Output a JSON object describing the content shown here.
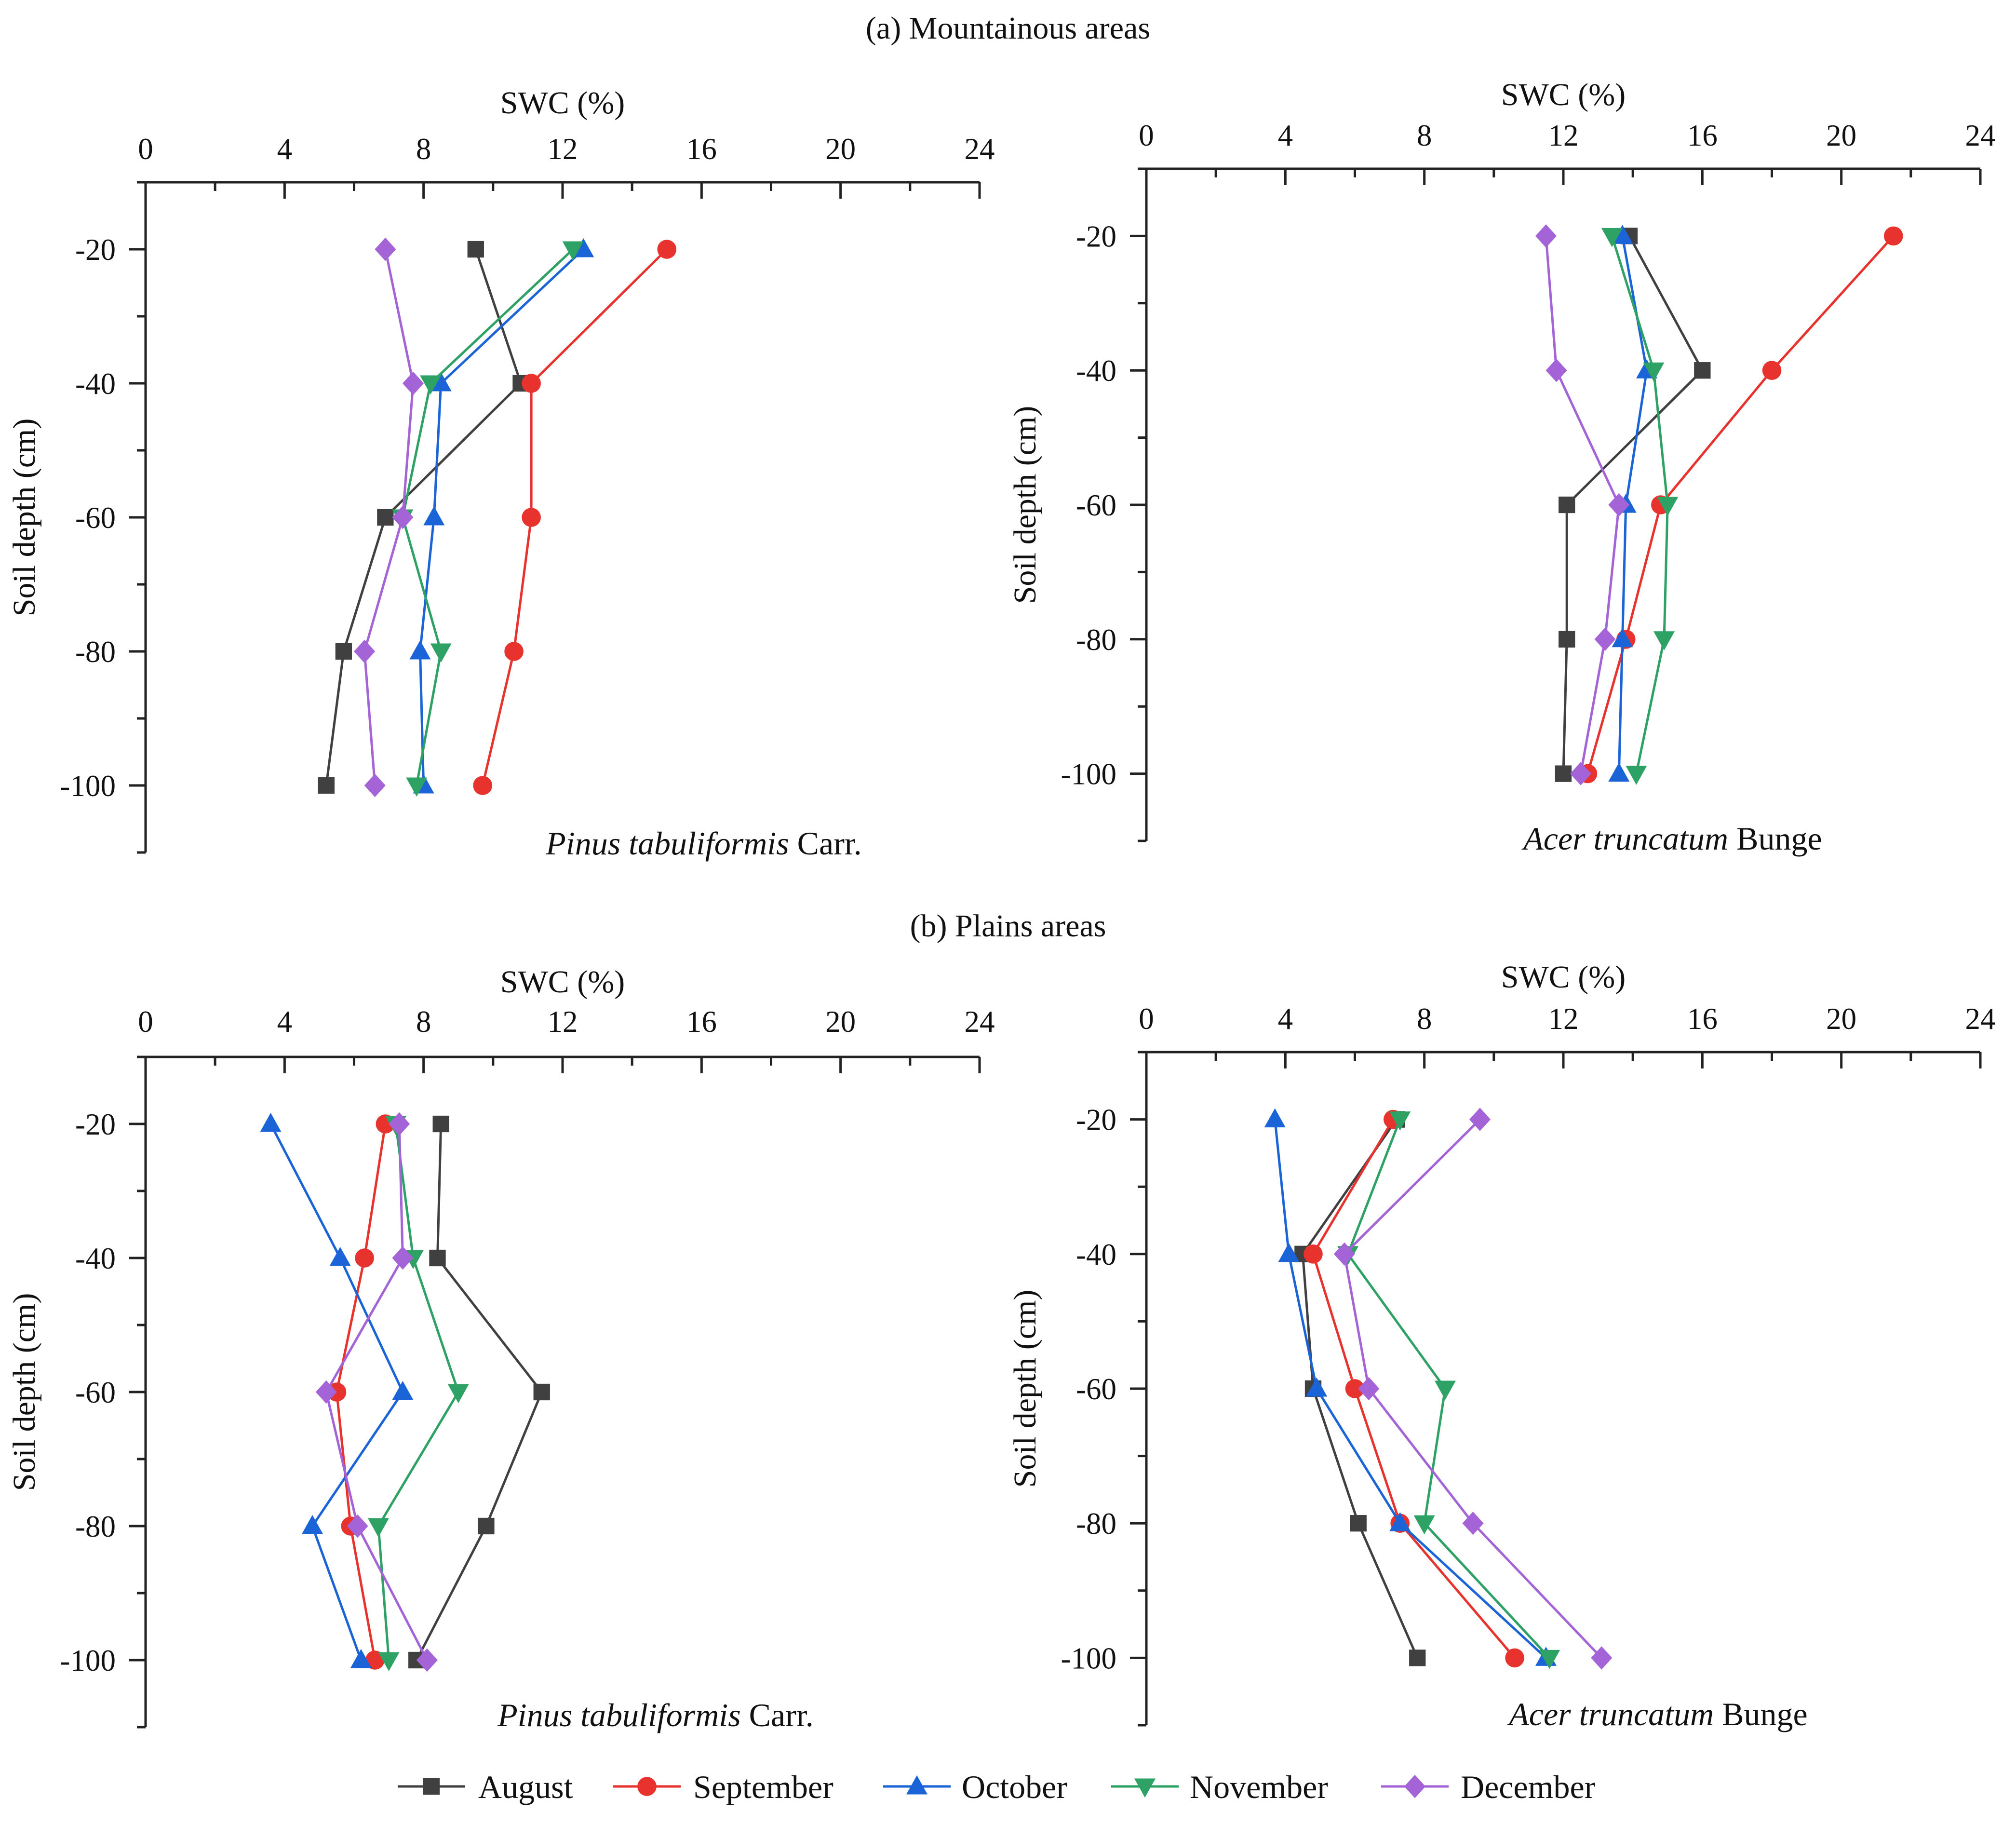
{
  "sections": [
    {
      "title": "(a) Mountainous areas"
    },
    {
      "title": "(b) Plains areas"
    }
  ],
  "colors": {
    "August": "#404040",
    "September": "#e8322e",
    "October": "#1a64d8",
    "November": "#2ea165",
    "December": "#a463d6"
  },
  "legend": [
    {
      "label": "August",
      "marker": "square"
    },
    {
      "label": "September",
      "marker": "circle"
    },
    {
      "label": "October",
      "marker": "triangle-up"
    },
    {
      "label": "November",
      "marker": "triangle-down"
    },
    {
      "label": "December",
      "marker": "diamond"
    }
  ],
  "panels": [
    {
      "species_italic": "Pinus tabuliformis",
      "species_rest": " Carr."
    },
    {
      "species_italic": "Acer truncatum",
      "species_rest": " Bunge"
    },
    {
      "species_italic": "Pinus tabuliformis",
      "species_rest": " Carr."
    },
    {
      "species_italic": "Acer truncatum",
      "species_rest": " Bunge"
    }
  ],
  "chart_data": [
    {
      "type": "line",
      "section": "(a) Mountainous areas",
      "title": "Pinus tabuliformis Carr.",
      "xlabel": "SWC (%)",
      "ylabel": "Soil depth (cm)",
      "xlim": [
        0,
        24
      ],
      "ylim": [
        -110,
        -10
      ],
      "xticks": [
        0,
        4,
        8,
        12,
        16,
        20,
        24
      ],
      "yticks": [
        -20,
        -40,
        -60,
        -80,
        -100
      ],
      "depths": [
        -20,
        -40,
        -60,
        -80,
        -100
      ],
      "series": [
        {
          "name": "August",
          "values": [
            9.5,
            10.8,
            6.9,
            5.7,
            5.2
          ]
        },
        {
          "name": "September",
          "values": [
            15.0,
            11.1,
            11.1,
            10.6,
            9.7
          ]
        },
        {
          "name": "October",
          "values": [
            12.6,
            8.5,
            8.3,
            7.9,
            8.0
          ]
        },
        {
          "name": "November",
          "values": [
            12.3,
            8.2,
            7.4,
            8.5,
            7.8
          ]
        },
        {
          "name": "December",
          "values": [
            6.9,
            7.7,
            7.4,
            6.3,
            6.6
          ]
        }
      ]
    },
    {
      "type": "line",
      "section": "(a) Mountainous areas",
      "title": "Acer truncatum Bunge",
      "xlabel": "SWC (%)",
      "ylabel": "Soil depth (cm)",
      "xlim": [
        0,
        24
      ],
      "ylim": [
        -110,
        -10
      ],
      "xticks": [
        0,
        4,
        8,
        12,
        16,
        20,
        24
      ],
      "yticks": [
        -20,
        -40,
        -60,
        -80,
        -100
      ],
      "depths": [
        -20,
        -40,
        -60,
        -80,
        -100
      ],
      "series": [
        {
          "name": "August",
          "values": [
            13.9,
            16.0,
            12.1,
            12.1,
            12.0
          ]
        },
        {
          "name": "September",
          "values": [
            21.5,
            18.0,
            14.8,
            13.8,
            12.7
          ]
        },
        {
          "name": "October",
          "values": [
            13.7,
            14.4,
            13.8,
            13.7,
            13.6
          ]
        },
        {
          "name": "November",
          "values": [
            13.4,
            14.6,
            15.0,
            14.9,
            14.1
          ]
        },
        {
          "name": "December",
          "values": [
            11.5,
            11.8,
            13.6,
            13.2,
            12.5
          ]
        }
      ]
    },
    {
      "type": "line",
      "section": "(b) Plains areas",
      "title": "Pinus tabuliformis Carr.",
      "xlabel": "SWC (%)",
      "ylabel": "Soil depth (cm)",
      "xlim": [
        0,
        24
      ],
      "ylim": [
        -110,
        -10
      ],
      "xticks": [
        0,
        4,
        8,
        12,
        16,
        20,
        24
      ],
      "yticks": [
        -20,
        -40,
        -60,
        -80,
        -100
      ],
      "depths": [
        -20,
        -40,
        -60,
        -80,
        -100
      ],
      "series": [
        {
          "name": "August",
          "values": [
            8.5,
            8.4,
            11.4,
            9.8,
            7.8
          ]
        },
        {
          "name": "September",
          "values": [
            6.9,
            6.3,
            5.5,
            5.9,
            6.6
          ]
        },
        {
          "name": "October",
          "values": [
            3.6,
            5.6,
            7.4,
            4.8,
            6.2
          ]
        },
        {
          "name": "November",
          "values": [
            7.2,
            7.7,
            9.0,
            6.7,
            7.0
          ]
        },
        {
          "name": "December",
          "values": [
            7.3,
            7.4,
            5.2,
            6.1,
            8.1
          ]
        }
      ]
    },
    {
      "type": "line",
      "section": "(b) Plains areas",
      "title": "Acer truncatum Bunge",
      "xlabel": "SWC (%)",
      "ylabel": "Soil depth (cm)",
      "xlim": [
        0,
        24
      ],
      "ylim": [
        -110,
        -10
      ],
      "xticks": [
        0,
        4,
        8,
        12,
        16,
        20,
        24
      ],
      "yticks": [
        -20,
        -40,
        -60,
        -80,
        -100
      ],
      "depths": [
        -20,
        -40,
        -60,
        -80,
        -100
      ],
      "series": [
        {
          "name": "August",
          "values": [
            7.2,
            4.5,
            4.8,
            6.1,
            7.8
          ]
        },
        {
          "name": "September",
          "values": [
            7.1,
            4.8,
            6.0,
            7.3,
            10.6
          ]
        },
        {
          "name": "October",
          "values": [
            3.7,
            4.1,
            4.9,
            7.3,
            11.5
          ]
        },
        {
          "name": "November",
          "values": [
            7.3,
            5.8,
            8.6,
            8.0,
            11.6
          ]
        },
        {
          "name": "December",
          "values": [
            9.6,
            5.7,
            6.4,
            9.4,
            13.1
          ]
        }
      ]
    }
  ]
}
